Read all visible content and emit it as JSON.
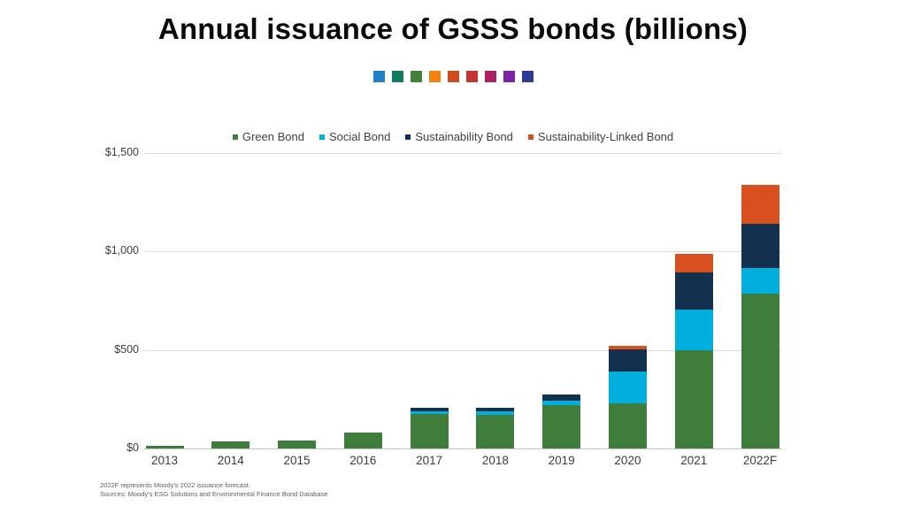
{
  "title": "Annual issuance of GSSS bonds (billions)",
  "decor_squares": [
    "#1b80c4",
    "#0e7a5e",
    "#44803b",
    "#f0820d",
    "#cf4a1e",
    "#c33535",
    "#ae2167",
    "#7b23a5",
    "#2e3a96"
  ],
  "chart_data": {
    "type": "bar",
    "stacked": true,
    "title": "Annual issuance of GSSS bonds (billions)",
    "categories": [
      "2013",
      "2014",
      "2015",
      "2016",
      "2017",
      "2018",
      "2019",
      "2020",
      "2021",
      "2022F"
    ],
    "series": [
      {
        "name": "Green Bond",
        "color": "#3e7d3b",
        "values": [
          12,
          36,
          40,
          81,
          175,
          172,
          218,
          230,
          500,
          785
        ]
      },
      {
        "name": "Social Bond",
        "color": "#00afdb",
        "values": [
          0,
          0,
          0,
          0,
          15,
          18,
          24,
          160,
          205,
          130
        ]
      },
      {
        "name": "Sustainability Bond",
        "color": "#14304f",
        "values": [
          0,
          0,
          0,
          0,
          15,
          15,
          33,
          115,
          190,
          225
        ]
      },
      {
        "name": "Sustainability-Linked Bond",
        "color": "#d8501e",
        "values": [
          0,
          0,
          0,
          0,
          0,
          0,
          0,
          16,
          95,
          200
        ]
      }
    ],
    "totals": [
      12,
      36,
      40,
      81,
      205,
      205,
      275,
      521,
      990,
      1340
    ],
    "xlabel": "",
    "ylabel": "",
    "ylim": [
      0,
      1500
    ],
    "yticks": [
      {
        "value": 0,
        "label": "$0"
      },
      {
        "value": 500,
        "label": "$500"
      },
      {
        "value": 1000,
        "label": "$1,000"
      },
      {
        "value": 1500,
        "label": "$1,500"
      }
    ],
    "grid": true,
    "legend_position": "top"
  },
  "footnotes": {
    "line1": "2022F represents Moody's 2022 issuance forecast.",
    "line2": "Sources: Moody's ESG Solutions and Environmental Finance Bond Database"
  }
}
